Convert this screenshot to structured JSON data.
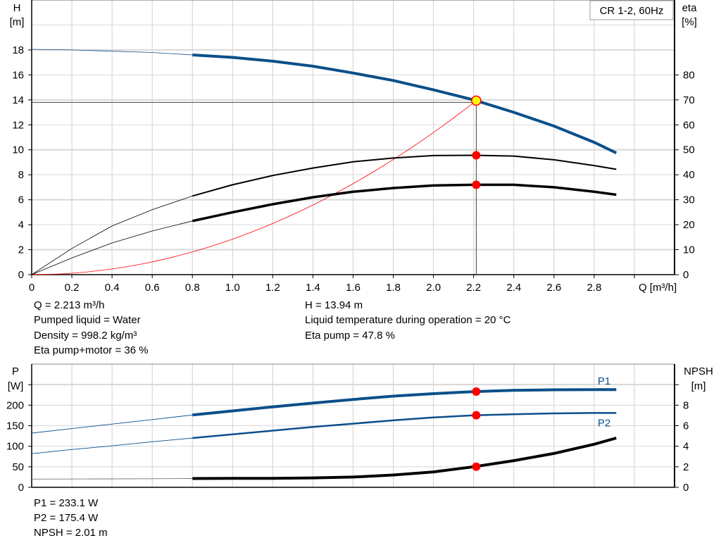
{
  "chart_data": [
    {
      "type": "line",
      "title_box": "CR 1-2, 60Hz",
      "xlabel": "Q [m³/h]",
      "ylabel_left": [
        "H",
        "[m]"
      ],
      "ylabel_right": [
        "eta",
        "[%]"
      ],
      "xlim": [
        0,
        3.2
      ],
      "ylim_left": [
        0,
        22
      ],
      "ylim_right": [
        0,
        110
      ],
      "x_ticks": [
        "0",
        "0.2",
        "0.4",
        "0.6",
        "0.8",
        "1.0",
        "1.2",
        "1.4",
        "1.6",
        "1.8",
        "2.0",
        "2.2",
        "2.4",
        "2.6",
        "2.8"
      ],
      "y_ticks_left": [
        "0",
        "2",
        "4",
        "6",
        "8",
        "10",
        "12",
        "14",
        "16",
        "18"
      ],
      "y_ticks_right": [
        "0",
        "10",
        "20",
        "30",
        "40",
        "50",
        "60",
        "70",
        "80"
      ],
      "grid": true,
      "x": [
        0,
        0.2,
        0.4,
        0.6,
        0.8,
        1.0,
        1.2,
        1.4,
        1.6,
        1.8,
        2.0,
        2.2,
        2.4,
        2.6,
        2.8,
        2.91
      ],
      "series": [
        {
          "key": "H",
          "axis": "left",
          "color": "#0b4f8a",
          "values": [
            18.05,
            18.0,
            17.9,
            17.8,
            17.6,
            17.4,
            17.1,
            16.7,
            16.15,
            15.55,
            14.8,
            14.0,
            13.0,
            11.9,
            10.6,
            9.75
          ]
        },
        {
          "key": "eta_pump",
          "axis": "right",
          "color": "#000000",
          "values": [
            0,
            10.5,
            19.5,
            26,
            31.5,
            36,
            39.7,
            42.7,
            45.2,
            46.7,
            47.7,
            47.8,
            47.5,
            46,
            43.7,
            42.2
          ]
        },
        {
          "key": "eta_pump_motor",
          "axis": "right",
          "color": "#000000",
          "values": [
            0,
            6.7,
            12.7,
            17.5,
            21.5,
            25,
            28.2,
            31,
            33.2,
            34.7,
            35.7,
            36,
            36,
            35,
            33.2,
            32
          ]
        }
      ],
      "system_curve": {
        "color": "#ff0000",
        "q_end": 2.213,
        "h_end": 13.94
      },
      "duty_point": {
        "q": 2.213,
        "h": 13.94,
        "eta_pump": 47.8,
        "eta_pump_motor": 36
      }
    },
    {
      "type": "line",
      "ylabel_left": [
        "P",
        "[W]"
      ],
      "ylabel_right": [
        "NPSH",
        "[m]"
      ],
      "xlim": [
        0,
        3.2
      ],
      "ylim_left": [
        0,
        300
      ],
      "ylim_right": [
        0,
        12
      ],
      "y_ticks_left": [
        "0",
        "50",
        "100",
        "150",
        "200"
      ],
      "y_ticks_right": [
        "0",
        "2",
        "4",
        "6",
        "8"
      ],
      "grid": true,
      "x": [
        0,
        0.2,
        0.4,
        0.6,
        0.8,
        1.0,
        1.2,
        1.4,
        1.6,
        1.8,
        2.0,
        2.2,
        2.4,
        2.6,
        2.8,
        2.91
      ],
      "series": [
        {
          "name": "P1",
          "axis": "left",
          "color": "#0b4f8a",
          "values": [
            132,
            143,
            154,
            165,
            176,
            186,
            196,
            205,
            214,
            222,
            228,
            233,
            236,
            237.5,
            238,
            238
          ]
        },
        {
          "name": "P2",
          "axis": "left",
          "color": "#0b4f8a",
          "values": [
            82,
            92,
            101,
            111,
            120,
            129,
            138,
            147,
            155,
            163,
            170,
            175.2,
            178,
            180,
            181,
            181
          ]
        },
        {
          "key": "NPSH",
          "axis": "right",
          "color": "#000000",
          "values": [
            0.8,
            0.81,
            0.82,
            0.84,
            0.86,
            0.87,
            0.88,
            0.92,
            1.0,
            1.2,
            1.5,
            2.0,
            2.6,
            3.3,
            4.2,
            4.8
          ]
        }
      ],
      "duty_point": {
        "q": 2.213,
        "p1": 233.1,
        "p2": 175.4,
        "npsh": 2.01
      }
    }
  ],
  "info_top": {
    "q": "Q = 2.213 m³/h",
    "liquid": "Pumped liquid = Water",
    "density": "Density = 998.2 kg/m³",
    "eta_total": "Eta pump+motor = 36 %",
    "h": "H = 13.94 m",
    "temp": "Liquid temperature during operation = 20 °C",
    "eta_pump": "Eta pump = 47.8 %"
  },
  "info_bottom": {
    "p1": "P1 = 233.1 W",
    "p2": "P2 = 175.4 W",
    "npsh": "NPSH = 2.01 m"
  }
}
